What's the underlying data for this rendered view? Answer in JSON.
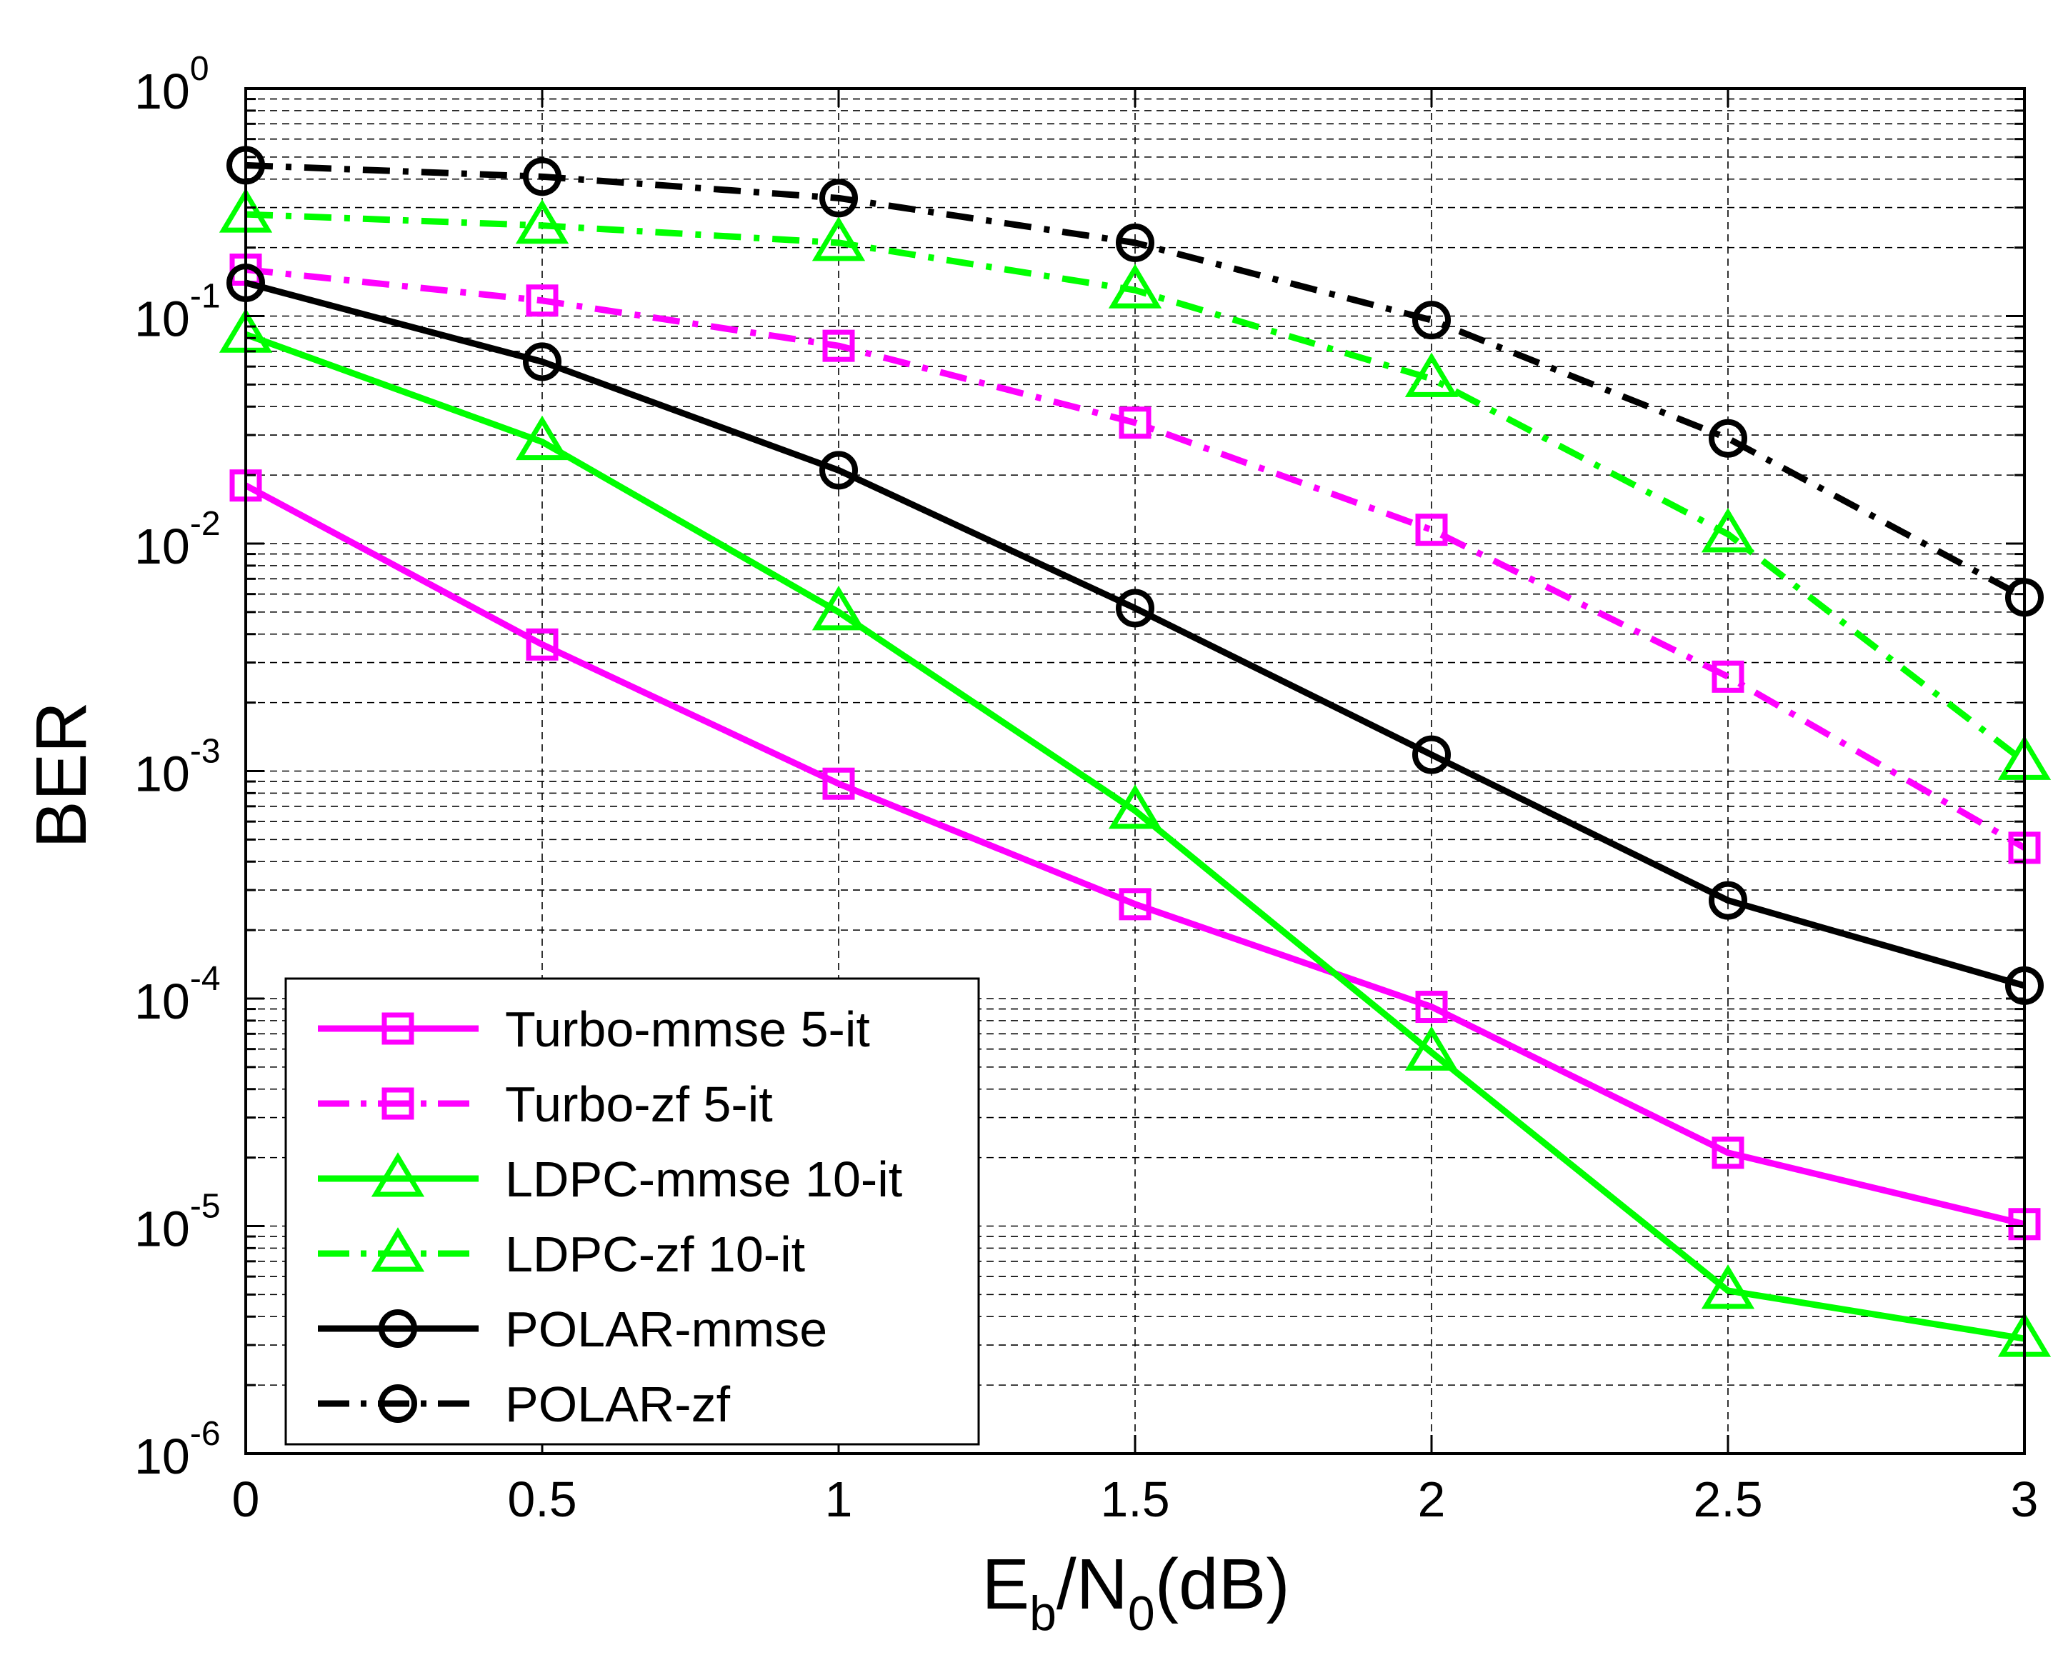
{
  "chart_data": {
    "type": "line",
    "y_scale": "log",
    "xlabel": {
      "base": "E",
      "sub1": "b",
      "mid": "/N",
      "sub2": "0",
      "end": "(dB)"
    },
    "ylabel": "BER",
    "xlim": [
      0,
      3
    ],
    "ylim": [
      1e-06,
      1
    ],
    "grid": true,
    "legend_position": "bottom-left",
    "x": [
      0,
      0.5,
      1,
      1.5,
      2,
      2.5,
      3
    ],
    "x_tick_labels": [
      "0",
      "0.5",
      "1",
      "1.5",
      "2",
      "2.5",
      "3"
    ],
    "y_ticks": [
      {
        "value": 1,
        "base": "10",
        "exp": "0"
      },
      {
        "value": 0.1,
        "base": "10",
        "exp": "-1"
      },
      {
        "value": 0.01,
        "base": "10",
        "exp": "-2"
      },
      {
        "value": 0.001,
        "base": "10",
        "exp": "-3"
      },
      {
        "value": 0.0001,
        "base": "10",
        "exp": "-4"
      },
      {
        "value": 1e-05,
        "base": "10",
        "exp": "-5"
      },
      {
        "value": 1e-06,
        "base": "10",
        "exp": "-6"
      }
    ],
    "series": [
      {
        "name": "Turbo-mmse 5-it",
        "color": "#ff00ff",
        "line": "solid",
        "marker": "square",
        "values": [
          0.018,
          0.0036,
          0.00088,
          0.00026,
          9.2e-05,
          2.1e-05,
          1.02e-05
        ]
      },
      {
        "name": "Turbo-zf 5-it",
        "color": "#ff00ff",
        "line": "dashdot",
        "marker": "square",
        "values": [
          0.16,
          0.117,
          0.074,
          0.034,
          0.0115,
          0.0026,
          0.00046
        ]
      },
      {
        "name": "LDPC-mmse 10-it",
        "color": "#00ff00",
        "line": "solid",
        "marker": "triangle",
        "values": [
          0.083,
          0.028,
          0.005,
          0.00067,
          5.8e-05,
          5.2e-06,
          3.2e-06
        ]
      },
      {
        "name": "LDPC-zf 10-it",
        "color": "#00ff00",
        "line": "dashdot",
        "marker": "triangle",
        "values": [
          0.28,
          0.25,
          0.21,
          0.13,
          0.053,
          0.011,
          0.0011
        ]
      },
      {
        "name": "POLAR-mmse",
        "color": "#000000",
        "line": "solid",
        "marker": "circle",
        "values": [
          0.14,
          0.063,
          0.021,
          0.0052,
          0.00118,
          0.00027,
          0.000114
        ]
      },
      {
        "name": "POLAR-zf",
        "color": "#000000",
        "line": "dashdot",
        "marker": "circle",
        "values": [
          0.46,
          0.41,
          0.33,
          0.21,
          0.096,
          0.029,
          0.0058
        ]
      }
    ]
  }
}
